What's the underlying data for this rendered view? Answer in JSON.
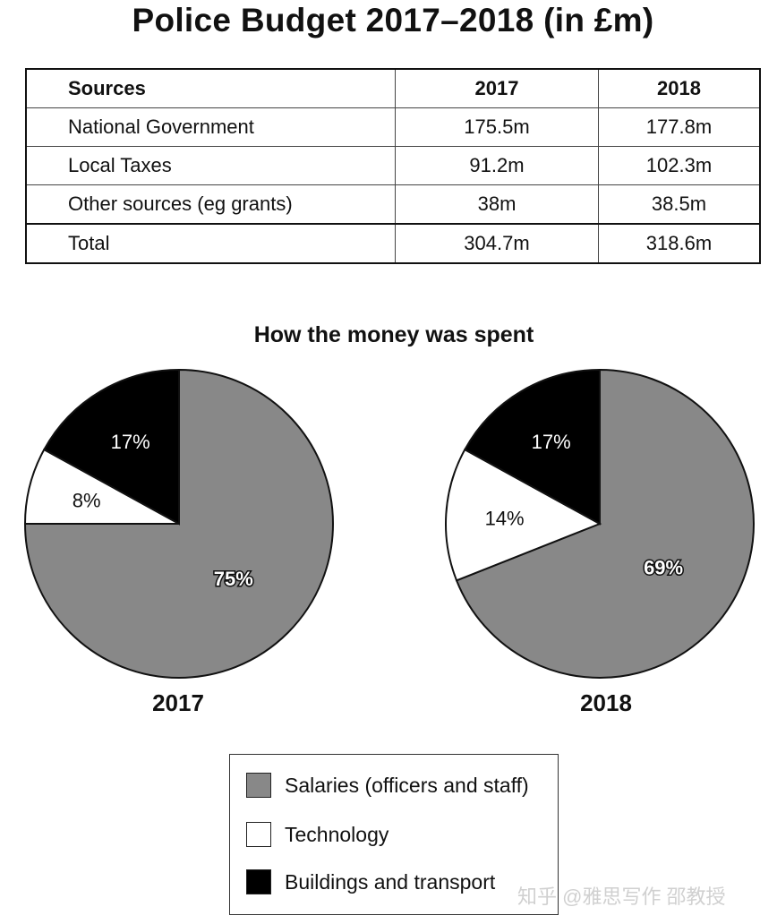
{
  "title": "Police Budget 2017–2018 (in £m)",
  "table": {
    "headers": [
      "Sources",
      "2017",
      "2018"
    ],
    "rows": [
      [
        "National Government",
        "175.5m",
        "177.8m"
      ],
      [
        "Local Taxes",
        "91.2m",
        "102.3m"
      ],
      [
        "Other sources (eg grants)",
        "38m",
        "38.5m"
      ]
    ],
    "total": [
      "Total",
      "304.7m",
      "318.6m"
    ]
  },
  "pies_title": "How the money was spent",
  "chart_data": {
    "type": "pie",
    "title": "How the money was spent",
    "categories": [
      "Salaries (officers and staff)",
      "Technology",
      "Buildings and transport"
    ],
    "colors": [
      "#888888",
      "#ffffff",
      "#000000"
    ],
    "pies": [
      {
        "year": "2017",
        "values": [
          75,
          8,
          17
        ],
        "labels": [
          "75%",
          "8%",
          "17%"
        ]
      },
      {
        "year": "2018",
        "values": [
          69,
          14,
          17
        ],
        "labels": [
          "69%",
          "14%",
          "17%"
        ]
      }
    ]
  },
  "legend": [
    {
      "label": "Salaries (officers and staff)",
      "color": "#888888"
    },
    {
      "label": "Technology",
      "color": "#ffffff"
    },
    {
      "label": "Buildings and transport",
      "color": "#000000"
    }
  ],
  "watermark": "知乎 @雅思写作 邵教授"
}
